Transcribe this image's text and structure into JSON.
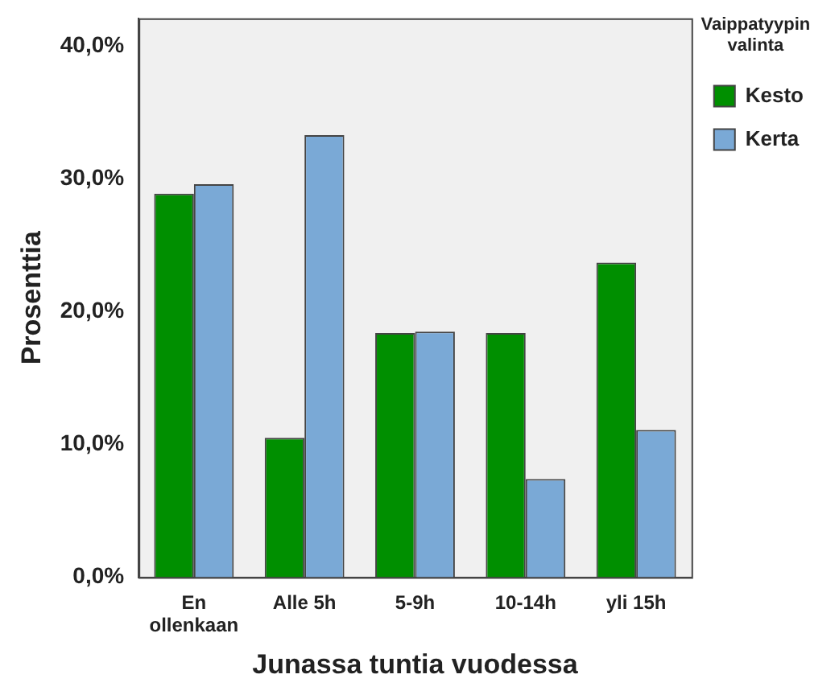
{
  "chart_data": {
    "type": "bar",
    "xlabel": "Junassa tuntia vuodessa",
    "ylabel": "Prosenttia",
    "legend_title": "Vaippatyypin valinta",
    "categories": [
      "En ollenkaan",
      "Alle 5h",
      "5-9h",
      "10-14h",
      "yli 15h"
    ],
    "series": [
      {
        "name": "Kesto",
        "color": "#008f00",
        "values": [
          28.9,
          10.5,
          18.4,
          18.4,
          23.7
        ]
      },
      {
        "name": "Kerta",
        "color": "#7aa9d6",
        "values": [
          29.6,
          33.3,
          18.5,
          7.4,
          11.1
        ]
      }
    ],
    "ylim": [
      0,
      42.1
    ],
    "yticks": [
      {
        "value": 0,
        "label": "0,0%"
      },
      {
        "value": 10,
        "label": "10,0%"
      },
      {
        "value": 20,
        "label": "20,0%"
      },
      {
        "value": 30,
        "label": "30,0%"
      },
      {
        "value": 40,
        "label": "40,0%"
      }
    ],
    "grid": false,
    "legend": "top right"
  }
}
